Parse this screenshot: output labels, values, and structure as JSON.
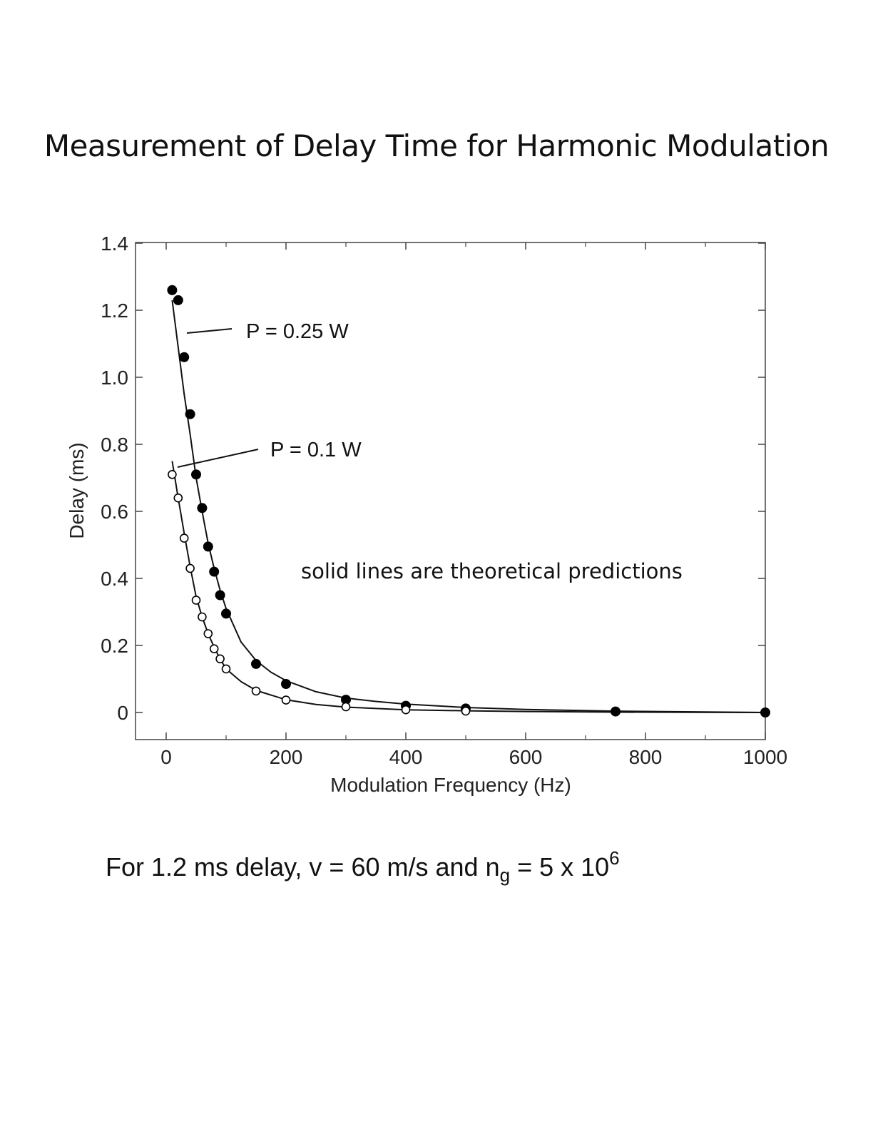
{
  "page": {
    "title": "Measurement of Delay Time for Harmonic Modulation",
    "caption": {
      "prefix": "For 1.2 ms delay, v = 60 m/s and n",
      "sub": "g",
      "middle": " = 5 x 10",
      "sup": "6"
    }
  },
  "chart_data": {
    "type": "scatter",
    "xlabel": "Modulation Frequency (Hz)",
    "ylabel": "Delay (ms)",
    "xlim": [
      -50,
      1000
    ],
    "ylim": [
      -0.08,
      1.4
    ],
    "x_ticks": [
      0,
      200,
      400,
      600,
      800,
      1000
    ],
    "x_tick_labels": [
      "0",
      "200",
      "400",
      "600",
      "800",
      "1000"
    ],
    "y_ticks": [
      0,
      0.2,
      0.4,
      0.6,
      0.8,
      1.0,
      1.2,
      1.4
    ],
    "y_tick_labels": [
      "0",
      "0.2",
      "0.4",
      "0.6",
      "0.8",
      "1.0",
      "1.2",
      "1.4"
    ],
    "grid": false,
    "series": [
      {
        "name": "P = 0.25 W",
        "marker": "filled-circle",
        "color": "#000000",
        "x": [
          10,
          20,
          30,
          40,
          50,
          60,
          70,
          80,
          90,
          100,
          150,
          200,
          300,
          400,
          500,
          750,
          1000
        ],
        "y": [
          1.26,
          1.23,
          1.06,
          0.89,
          0.71,
          0.61,
          0.495,
          0.42,
          0.35,
          0.295,
          0.145,
          0.085,
          0.038,
          0.02,
          0.012,
          0.003,
          0.0
        ]
      },
      {
        "name": "P = 0.1 W",
        "marker": "open-circle",
        "color": "#000000",
        "x": [
          10,
          20,
          30,
          40,
          50,
          60,
          70,
          80,
          90,
          100,
          150,
          200,
          300,
          400,
          500
        ],
        "y": [
          0.71,
          0.64,
          0.52,
          0.43,
          0.335,
          0.285,
          0.235,
          0.19,
          0.16,
          0.13,
          0.064,
          0.037,
          0.017,
          0.008,
          0.004
        ]
      }
    ],
    "fits": [
      {
        "series": "P = 0.25 W",
        "x": [
          10,
          20,
          30,
          40,
          50,
          60,
          70,
          80,
          90,
          100,
          125,
          150,
          175,
          200,
          250,
          300,
          350,
          400,
          500,
          600,
          750,
          1000
        ],
        "y": [
          1.23,
          1.09,
          0.95,
          0.83,
          0.7,
          0.6,
          0.505,
          0.43,
          0.365,
          0.31,
          0.21,
          0.155,
          0.12,
          0.095,
          0.062,
          0.043,
          0.033,
          0.025,
          0.015,
          0.009,
          0.004,
          0.0
        ]
      },
      {
        "series": "P = 0.1 W",
        "x": [
          10,
          20,
          30,
          40,
          50,
          60,
          70,
          80,
          90,
          100,
          125,
          150,
          200,
          250,
          300,
          400,
          500,
          600,
          750,
          1000
        ],
        "y": [
          0.75,
          0.64,
          0.535,
          0.435,
          0.345,
          0.285,
          0.235,
          0.195,
          0.16,
          0.13,
          0.092,
          0.066,
          0.038,
          0.024,
          0.016,
          0.008,
          0.005,
          0.003,
          0.001,
          0.0
        ]
      }
    ],
    "annotations": [
      {
        "text": "P = 0.25 W",
        "points_to": "P = 0.25 W"
      },
      {
        "text": "P = 0.1 W",
        "points_to": "P = 0.1 W"
      },
      {
        "text": "solid lines are theoretical predictions"
      }
    ]
  }
}
